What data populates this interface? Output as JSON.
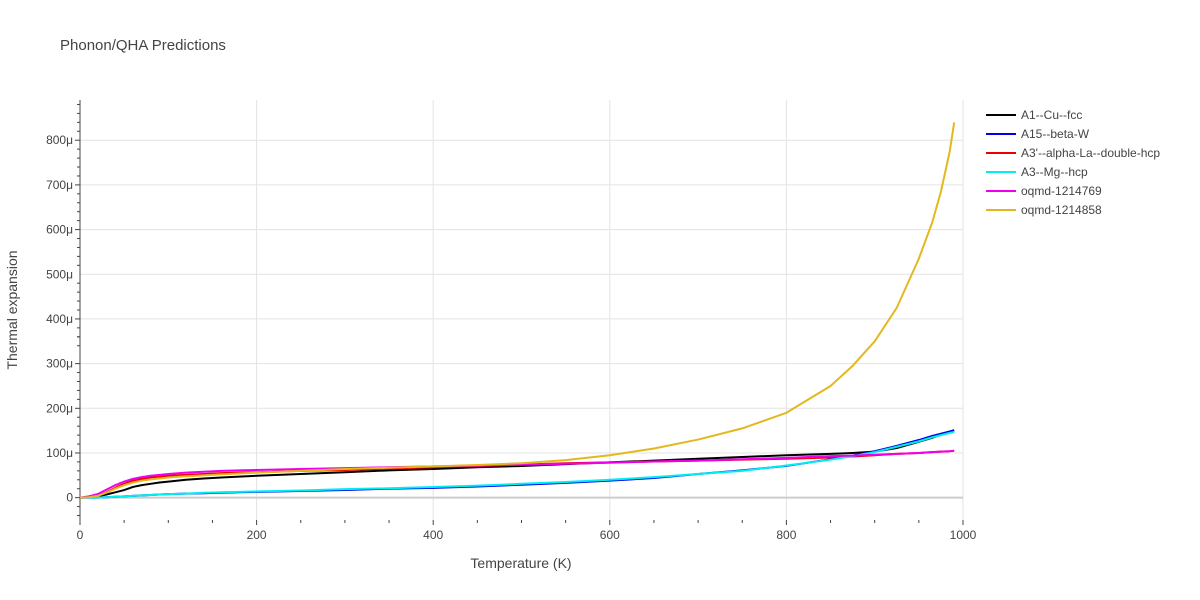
{
  "chart_data": {
    "type": "line",
    "title": "Phonon/QHA Predictions",
    "xlabel": "Temperature (K)",
    "ylabel": "Thermal expansion",
    "xlim": [
      0,
      1000
    ],
    "ylim": [
      -5e-05,
      0.00089
    ],
    "x_ticks": [
      0,
      200,
      400,
      600,
      800,
      1000
    ],
    "x_tick_labels": [
      "0",
      "200",
      "400",
      "600",
      "800",
      "1000"
    ],
    "y_ticks": [
      0,
      0.0001,
      0.0002,
      0.0003,
      0.0004,
      0.0005,
      0.0006,
      0.0007,
      0.0008
    ],
    "y_tick_labels": [
      "0",
      "100μ",
      "200μ",
      "300μ",
      "400μ",
      "500μ",
      "600μ",
      "700μ",
      "800μ"
    ],
    "grid": true,
    "legend_position": "right",
    "x": [
      0,
      10,
      20,
      30,
      40,
      50,
      60,
      70,
      80,
      90,
      100,
      120,
      140,
      160,
      180,
      200,
      250,
      300,
      350,
      400,
      450,
      500,
      550,
      600,
      650,
      700,
      750,
      800,
      850,
      875,
      900,
      925,
      950,
      965,
      975,
      985,
      990
    ],
    "series": [
      {
        "name": "A1--Cu--fcc",
        "color": "#000000",
        "values": [
          0,
          1e-06,
          3e-06,
          7e-06,
          1.2e-05,
          1.7e-05,
          2.4e-05,
          2.8e-05,
          3.1e-05,
          3.4e-05,
          3.6e-05,
          4e-05,
          4.3e-05,
          4.5e-05,
          4.7e-05,
          4.9e-05,
          5.3e-05,
          5.7e-05,
          6.1e-05,
          6.4e-05,
          6.8e-05,
          7.1e-05,
          7.5e-05,
          7.9e-05,
          8.3e-05,
          8.7e-05,
          9.1e-05,
          9.5e-05,
          9.8e-05,
          0.0001,
          0.000103,
          0.000111,
          0.000125,
          0.000134,
          0.000141,
          0.000148,
          0.000151
        ]
      },
      {
        "name": "A15--beta-W",
        "color": "#0000ee",
        "values": [
          0,
          0,
          0,
          1e-06,
          2e-06,
          3e-06,
          4e-06,
          5e-06,
          6e-06,
          7e-06,
          8e-06,
          9e-06,
          1e-05,
          1.1e-05,
          1.2e-05,
          1.3e-05,
          1.5e-05,
          1.7e-05,
          2e-05,
          2.2e-05,
          2.5e-05,
          2.9e-05,
          3.3e-05,
          3.8e-05,
          4.4e-05,
          5.3e-05,
          6.1e-05,
          7.1e-05,
          8.6e-05,
          9.4e-05,
          0.000104,
          0.000116,
          0.000129,
          0.000138,
          0.000143,
          0.000148,
          0.00015
        ]
      },
      {
        "name": "A3'--alpha-La--double-hcp",
        "color": "#ee0000",
        "values": [
          0,
          1e-06,
          4e-06,
          1.2e-05,
          2.2e-05,
          3.1e-05,
          3.8e-05,
          4.2e-05,
          4.5e-05,
          4.7e-05,
          4.9e-05,
          5.1e-05,
          5.3e-05,
          5.5e-05,
          5.6e-05,
          5.7e-05,
          6e-05,
          6.2e-05,
          6.5e-05,
          6.8e-05,
          7.1e-05,
          7.4e-05,
          7.7e-05,
          7.9e-05,
          8.1e-05,
          8.3e-05,
          8.5e-05,
          8.7e-05,
          9e-05,
          9.2e-05,
          9.5e-05,
          9.8e-05,
          0.0001,
          0.000102,
          0.000103,
          0.000104,
          0.000105
        ]
      },
      {
        "name": "A3--Mg--hcp",
        "color": "#00eeee",
        "values": [
          0,
          0,
          0,
          1e-06,
          2e-06,
          3e-06,
          4e-06,
          5e-06,
          6e-06,
          7e-06,
          8e-06,
          9e-06,
          1.1e-05,
          1.2e-05,
          1.3e-05,
          1.4e-05,
          1.6e-05,
          1.9e-05,
          2.1e-05,
          2.4e-05,
          2.7e-05,
          3.1e-05,
          3.5e-05,
          4e-05,
          4.6e-05,
          5.3e-05,
          6e-05,
          7.2e-05,
          8.5e-05,
          9.3e-05,
          0.000102,
          0.000114,
          0.000126,
          0.000135,
          0.00014,
          0.000145,
          0.000147
        ]
      },
      {
        "name": "oqmd-1214769",
        "color": "#ee00ee",
        "values": [
          0,
          3e-06,
          8e-06,
          1.8e-05,
          2.8e-05,
          3.6e-05,
          4.2e-05,
          4.6e-05,
          4.9e-05,
          5.1e-05,
          5.3e-05,
          5.6e-05,
          5.8e-05,
          6e-05,
          6.1e-05,
          6.2e-05,
          6.4e-05,
          6.6e-05,
          6.8e-05,
          7e-05,
          7.2e-05,
          7.4e-05,
          7.6e-05,
          7.8e-05,
          8.1e-05,
          8.3e-05,
          8.6e-05,
          8.9e-05,
          9.3e-05,
          9.4e-05,
          9.6e-05,
          9.8e-05,
          0.0001,
          0.000102,
          0.000103,
          0.000104,
          0.000105
        ]
      },
      {
        "name": "oqmd-1214858",
        "color": "#e3b81e",
        "values": [
          0,
          1e-06,
          4e-06,
          1.1e-05,
          2e-05,
          2.8e-05,
          3.4e-05,
          3.8e-05,
          4.1e-05,
          4.3e-05,
          4.5e-05,
          4.8e-05,
          5e-05,
          5.2e-05,
          5.4e-05,
          5.6e-05,
          6e-05,
          6.4e-05,
          6.7e-05,
          7e-05,
          7.3e-05,
          7.7e-05,
          8.4e-05,
          9.5e-05,
          0.00011,
          0.00013,
          0.000155,
          0.00019,
          0.00025,
          0.000295,
          0.00035,
          0.000425,
          0.000535,
          0.000615,
          0.000685,
          0.000775,
          0.00084
        ]
      }
    ]
  }
}
